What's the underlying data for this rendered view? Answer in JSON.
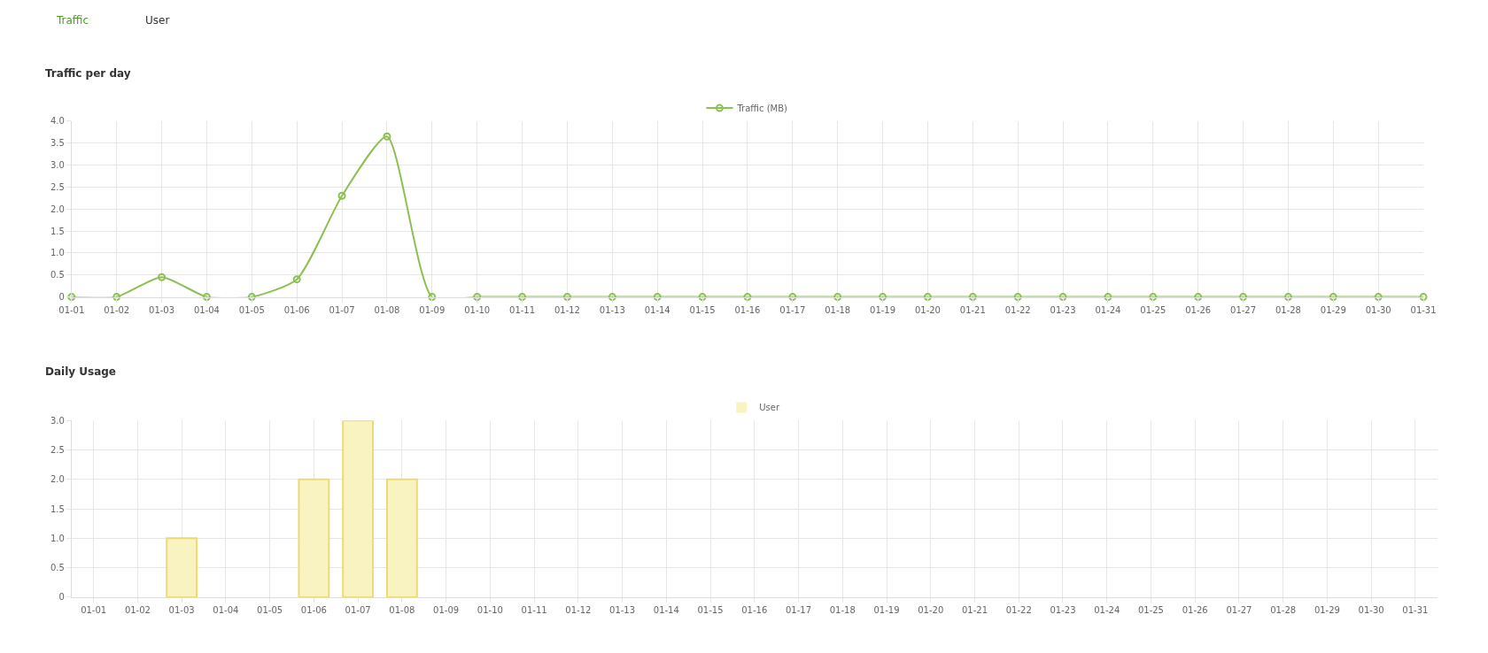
{
  "chart_data": [
    {
      "type": "line",
      "title": "Traffic per day",
      "annotations": [
        "Traffic",
        "User"
      ],
      "categories": [
        "01-01",
        "01-02",
        "01-03",
        "01-04",
        "01-05",
        "01-06",
        "01-07",
        "01-08",
        "01-09",
        "01-10",
        "01-11",
        "01-12",
        "01-13",
        "01-14",
        "01-15",
        "01-16",
        "01-17",
        "01-18",
        "01-19",
        "01-20",
        "01-21",
        "01-22",
        "01-23",
        "01-24",
        "01-25",
        "01-26",
        "01-27",
        "01-28",
        "01-29",
        "01-30",
        "01-31"
      ],
      "series": [
        {
          "name": "Traffic (MB)",
          "color": "#8cc152",
          "values": [
            0,
            0,
            0.45,
            0,
            0,
            0.4,
            2.3,
            3.65,
            0,
            0,
            0,
            0,
            0,
            0,
            0,
            0,
            0,
            0,
            0,
            0,
            0,
            0,
            0,
            0,
            0,
            0,
            0,
            0,
            0,
            0,
            0
          ]
        }
      ],
      "ylim": [
        0,
        4
      ],
      "yticks": [
        0,
        0.5,
        {
          "value": 1,
          "label": "1.0"
        },
        1.5,
        {
          "value": 2,
          "label": "2.0"
        },
        2.5,
        {
          "value": 3,
          "label": "3.0"
        },
        3.5,
        {
          "value": 4,
          "label": "4.0"
        }
      ],
      "grid": true,
      "legend": "top",
      "marker": "circle"
    },
    {
      "type": "bar",
      "title": "Daily Usage",
      "categories": [
        "01-01",
        "01-02",
        "01-03",
        "01-04",
        "01-05",
        "01-06",
        "01-07",
        "01-08",
        "01-09",
        "01-10",
        "01-11",
        "01-12",
        "01-13",
        "01-14",
        "01-15",
        "01-16",
        "01-17",
        "01-18",
        "01-19",
        "01-20",
        "01-21",
        "01-22",
        "01-23",
        "01-24",
        "01-25",
        "01-26",
        "01-27",
        "01-28",
        "01-29",
        "01-30",
        "01-31"
      ],
      "series": [
        {
          "name": "User",
          "color": "#f9f3c2",
          "values": [
            0,
            0,
            1,
            0,
            0,
            2,
            3,
            2,
            0,
            0,
            0,
            0,
            0,
            0,
            0,
            0,
            0,
            0,
            0,
            0,
            0,
            0,
            0,
            0,
            0,
            0,
            0,
            0,
            0,
            0,
            0
          ]
        }
      ],
      "ylim": [
        0,
        3
      ],
      "yticks": [
        0,
        0.5,
        {
          "value": 1,
          "label": "1.0"
        },
        1.5,
        {
          "value": 2,
          "label": "2.0"
        },
        2.5,
        {
          "value": 3,
          "label": "3.0"
        }
      ],
      "grid": true,
      "legend": "top"
    }
  ]
}
